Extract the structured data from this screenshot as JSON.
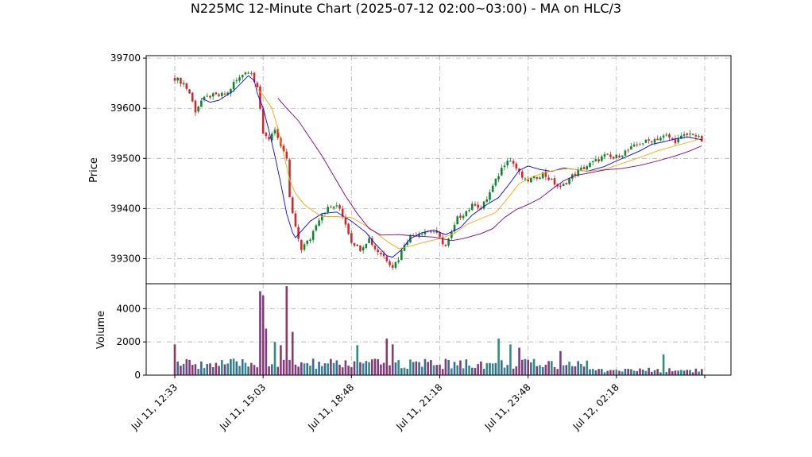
{
  "chart_data": {
    "type": "candlestick",
    "title": "N225MC 12-Minute Chart (2025-07-12 02:00~03:00) - MA on HLC/3",
    "price_panel": {
      "ylabel": "Price",
      "ylim": [
        39250,
        39705
      ],
      "yticks": [
        39300,
        39400,
        39500,
        39600,
        39700
      ],
      "grid": true,
      "moving_averages": [
        {
          "color": "#0000ff",
          "anchors": [
            [
              9,
              39620
            ],
            [
              12,
              39612
            ],
            [
              15,
              39616
            ],
            [
              20,
              39635
            ],
            [
              25,
              39665
            ],
            [
              27,
              39655
            ],
            [
              28,
              39630
            ],
            [
              30,
              39600
            ],
            [
              32,
              39555
            ],
            [
              34,
              39505
            ],
            [
              36,
              39450
            ],
            [
              38,
              39390
            ],
            [
              40,
              39352
            ],
            [
              41,
              39342
            ],
            [
              43,
              39355
            ],
            [
              46,
              39375
            ],
            [
              50,
              39390
            ],
            [
              55,
              39393
            ],
            [
              60,
              39375
            ],
            [
              65,
              39352
            ],
            [
              68,
              39330
            ],
            [
              72,
              39306
            ],
            [
              74,
              39303
            ],
            [
              77,
              39318
            ],
            [
              80,
              39340
            ],
            [
              84,
              39352
            ],
            [
              88,
              39357
            ],
            [
              92,
              39348
            ],
            [
              97,
              39362
            ],
            [
              101,
              39387
            ],
            [
              106,
              39408
            ],
            [
              110,
              39422
            ],
            [
              114,
              39452
            ],
            [
              117,
              39476
            ],
            [
              120,
              39485
            ],
            [
              124,
              39478
            ],
            [
              128,
              39474
            ],
            [
              132,
              39481
            ],
            [
              136,
              39478
            ],
            [
              140,
              39474
            ],
            [
              146,
              39484
            ],
            [
              150,
              39495
            ],
            [
              154,
              39505
            ],
            [
              158,
              39515
            ],
            [
              162,
              39528
            ],
            [
              166,
              39533
            ],
            [
              170,
              39539
            ],
            [
              174,
              39543
            ],
            [
              179,
              39537
            ]
          ]
        },
        {
          "color": "#ffa500",
          "anchors": [
            [
              27,
              39645
            ],
            [
              30,
              39626
            ],
            [
              33,
              39600
            ],
            [
              35,
              39560
            ],
            [
              37,
              39508
            ],
            [
              39,
              39458
            ],
            [
              41,
              39430
            ],
            [
              44,
              39408
            ],
            [
              47,
              39395
            ],
            [
              50,
              39384
            ],
            [
              55,
              39384
            ],
            [
              60,
              39382
            ],
            [
              66,
              39362
            ],
            [
              72,
              39335
            ],
            [
              76,
              39320
            ],
            [
              80,
              39325
            ],
            [
              85,
              39333
            ],
            [
              90,
              39340
            ],
            [
              95,
              39350
            ],
            [
              99,
              39368
            ],
            [
              104,
              39380
            ],
            [
              109,
              39392
            ],
            [
              113,
              39420
            ],
            [
              117,
              39450
            ],
            [
              122,
              39465
            ],
            [
              128,
              39475
            ],
            [
              134,
              39480
            ],
            [
              140,
              39474
            ],
            [
              146,
              39478
            ],
            [
              152,
              39490
            ],
            [
              158,
              39502
            ],
            [
              164,
              39515
            ],
            [
              170,
              39525
            ],
            [
              175,
              39533
            ],
            [
              179,
              39540
            ]
          ]
        },
        {
          "color": "#800080",
          "anchors": [
            [
              35,
              39620
            ],
            [
              38,
              39600
            ],
            [
              42,
              39575
            ],
            [
              46,
              39540
            ],
            [
              50,
              39505
            ],
            [
              54,
              39465
            ],
            [
              58,
              39425
            ],
            [
              62,
              39390
            ],
            [
              66,
              39360
            ],
            [
              70,
              39347
            ],
            [
              76,
              39348
            ],
            [
              82,
              39345
            ],
            [
              88,
              39343
            ],
            [
              94,
              39336
            ],
            [
              98,
              39340
            ],
            [
              104,
              39350
            ],
            [
              108,
              39360
            ],
            [
              112,
              39382
            ],
            [
              116,
              39398
            ],
            [
              120,
              39408
            ],
            [
              124,
              39420
            ],
            [
              128,
              39438
            ],
            [
              132,
              39455
            ],
            [
              136,
              39466
            ],
            [
              140,
              39470
            ],
            [
              146,
              39477
            ],
            [
              152,
              39480
            ],
            [
              158,
              39486
            ],
            [
              164,
              39495
            ],
            [
              170,
              39505
            ],
            [
              175,
              39515
            ],
            [
              179,
              39525
            ]
          ]
        }
      ]
    },
    "volume_panel": {
      "ylabel": "Volume",
      "ylim": [
        0,
        5500
      ],
      "yticks": [
        0,
        2000,
        4000
      ],
      "grid": true
    },
    "x_axis": {
      "bars": 180,
      "ticks": [
        {
          "bar": 0,
          "label": "Jul 11, 12:33"
        },
        {
          "bar": 30,
          "label": "Jul 11, 15:03"
        },
        {
          "bar": 60,
          "label": "Jul 11, 18:48"
        },
        {
          "bar": 90,
          "label": "Jul 11, 21:18"
        },
        {
          "bar": 120,
          "label": "Jul 11, 23:48"
        },
        {
          "bar": 150,
          "label": "Jul 12, 02:18"
        },
        {
          "bar": 180,
          "label": ""
        }
      ]
    },
    "close_anchors": [
      [
        0,
        39660
      ],
      [
        3,
        39650
      ],
      [
        5,
        39630
      ],
      [
        7,
        39595
      ],
      [
        9,
        39615
      ],
      [
        12,
        39625
      ],
      [
        15,
        39625
      ],
      [
        18,
        39630
      ],
      [
        20,
        39650
      ],
      [
        22,
        39660
      ],
      [
        24,
        39675
      ],
      [
        26,
        39670
      ],
      [
        28,
        39645
      ],
      [
        29,
        39600
      ],
      [
        30,
        39545
      ],
      [
        32,
        39540
      ],
      [
        34,
        39560
      ],
      [
        36,
        39520
      ],
      [
        38,
        39500
      ],
      [
        39,
        39420
      ],
      [
        41,
        39360
      ],
      [
        43,
        39320
      ],
      [
        46,
        39340
      ],
      [
        48,
        39370
      ],
      [
        50,
        39390
      ],
      [
        52,
        39400
      ],
      [
        54,
        39405
      ],
      [
        56,
        39400
      ],
      [
        58,
        39370
      ],
      [
        60,
        39335
      ],
      [
        63,
        39320
      ],
      [
        66,
        39340
      ],
      [
        68,
        39320
      ],
      [
        71,
        39305
      ],
      [
        74,
        39285
      ],
      [
        76,
        39300
      ],
      [
        78,
        39330
      ],
      [
        80,
        39345
      ],
      [
        82,
        39350
      ],
      [
        85,
        39355
      ],
      [
        88,
        39355
      ],
      [
        90,
        39340
      ],
      [
        92,
        39325
      ],
      [
        94,
        39350
      ],
      [
        96,
        39380
      ],
      [
        99,
        39395
      ],
      [
        102,
        39410
      ],
      [
        104,
        39400
      ],
      [
        106,
        39420
      ],
      [
        109,
        39455
      ],
      [
        111,
        39480
      ],
      [
        113,
        39500
      ],
      [
        115,
        39490
      ],
      [
        117,
        39470
      ],
      [
        119,
        39455
      ],
      [
        122,
        39460
      ],
      [
        125,
        39470
      ],
      [
        128,
        39455
      ],
      [
        131,
        39440
      ],
      [
        134,
        39460
      ],
      [
        137,
        39475
      ],
      [
        140,
        39485
      ],
      [
        143,
        39495
      ],
      [
        146,
        39505
      ],
      [
        149,
        39500
      ],
      [
        152,
        39510
      ],
      [
        155,
        39520
      ],
      [
        158,
        39530
      ],
      [
        161,
        39535
      ],
      [
        164,
        39540
      ],
      [
        167,
        39545
      ],
      [
        170,
        39535
      ],
      [
        173,
        39545
      ],
      [
        176,
        39550
      ],
      [
        179,
        39535
      ]
    ],
    "volume_spikes": [
      [
        0,
        1850
      ],
      [
        29,
        5050
      ],
      [
        30,
        4800
      ],
      [
        31,
        2800
      ],
      [
        34,
        2000
      ],
      [
        36,
        1800
      ],
      [
        38,
        5350
      ],
      [
        40,
        2600
      ],
      [
        62,
        1800
      ],
      [
        72,
        2200
      ],
      [
        74,
        1850
      ],
      [
        110,
        2200
      ],
      [
        114,
        1850
      ],
      [
        117,
        1650
      ],
      [
        131,
        1450
      ],
      [
        166,
        1250
      ]
    ]
  }
}
